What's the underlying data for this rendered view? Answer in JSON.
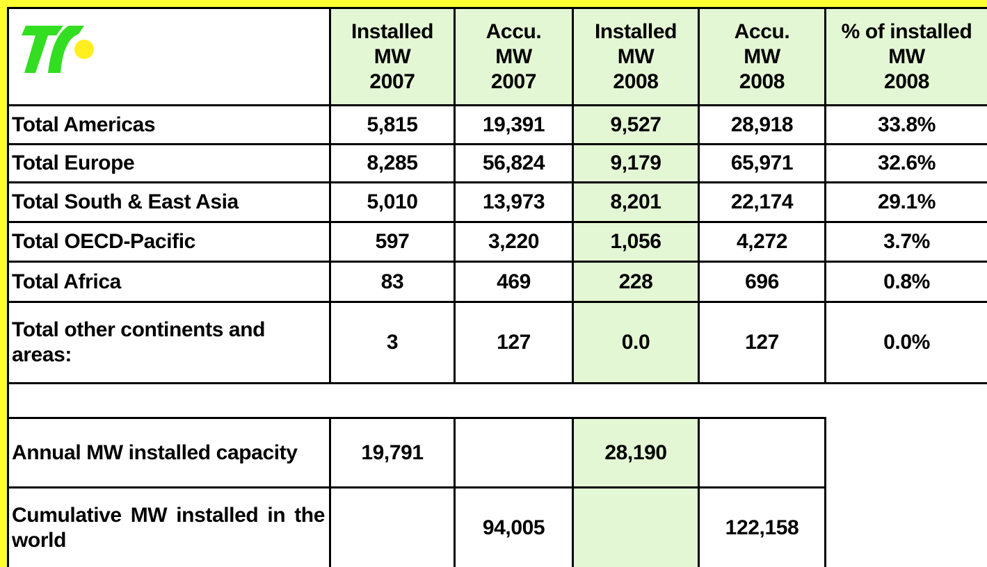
{
  "header": {
    "columns": [
      [
        "Installed",
        "MW",
        "2007"
      ],
      [
        "Accu.",
        "MW",
        "2007"
      ],
      [
        "Installed",
        "MW",
        "2008"
      ],
      [
        "Accu.",
        "MW",
        "2008"
      ],
      [
        "% of installed",
        "MW",
        "2008"
      ]
    ]
  },
  "rows": [
    {
      "label": "Total Americas",
      "values": [
        "5,815",
        "19,391",
        "9,527",
        "28,918",
        "33.8%"
      ]
    },
    {
      "label": "Total Europe",
      "values": [
        "8,285",
        "56,824",
        "9,179",
        "65,971",
        "32.6%"
      ]
    },
    {
      "label": "Total South & East Asia",
      "values": [
        "5,010",
        "13,973",
        "8,201",
        "22,174",
        "29.1%"
      ]
    },
    {
      "label": "Total OECD-Pacific",
      "values": [
        "597",
        "3,220",
        "1,056",
        "4,272",
        "3.7%"
      ]
    },
    {
      "label": "Total Africa",
      "values": [
        "83",
        "469",
        "228",
        "696",
        "0.8%"
      ]
    },
    {
      "label": "Total other continents and areas:",
      "values": [
        "3",
        "127",
        "0.0",
        "127",
        "0.0%"
      ]
    }
  ],
  "summary": [
    {
      "label": "Annual MW installed capacity",
      "cells": {
        "0": "19,791",
        "2": "28,190"
      }
    },
    {
      "label": "Cumulative MW installed in the world",
      "cells": {
        "1": "94,005",
        "3": "122,158"
      }
    }
  ]
}
